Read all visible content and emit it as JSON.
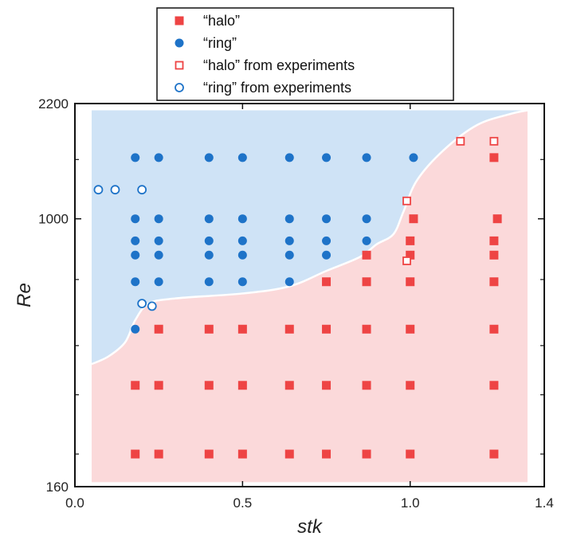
{
  "chart_data": {
    "type": "scatter",
    "title": "",
    "xlabel": "stk",
    "ylabel": "Re",
    "xlim": [
      0.0,
      1.4
    ],
    "ylim": [
      160,
      2200
    ],
    "yscale": "log",
    "x_ticks": [
      {
        "value": 0.0,
        "label": "0.0"
      },
      {
        "value": 0.5,
        "label": "0.5"
      },
      {
        "value": 1.0,
        "label": "1.0"
      },
      {
        "value": 1.4,
        "label": "1.4"
      }
    ],
    "y_ticks": [
      {
        "value": 160,
        "label": "160"
      },
      {
        "value": 1000,
        "label": "1000"
      },
      {
        "value": 2200,
        "label": "2200"
      }
    ],
    "y_minor_ticks": [
      1500,
      660,
      420,
      300,
      200
    ],
    "legend_position": "top-center",
    "regions": [
      {
        "name": "ring region",
        "color": "#cfe3f6"
      },
      {
        "name": "halo region",
        "color": "#fbd9da"
      }
    ],
    "boundary": [
      [
        0.05,
        370
      ],
      [
        0.1,
        390
      ],
      [
        0.15,
        430
      ],
      [
        0.18,
        500
      ],
      [
        0.22,
        560
      ],
      [
        0.3,
        580
      ],
      [
        0.5,
        600
      ],
      [
        0.64,
        630
      ],
      [
        0.75,
        700
      ],
      [
        0.85,
        770
      ],
      [
        0.9,
        840
      ],
      [
        0.95,
        900
      ],
      [
        0.98,
        1050
      ],
      [
        1.02,
        1300
      ],
      [
        1.1,
        1600
      ],
      [
        1.2,
        1900
      ],
      [
        1.3,
        2050
      ],
      [
        1.35,
        2100
      ]
    ],
    "series": [
      {
        "name": "“halo”",
        "marker": "square-filled",
        "color": "#ee4444",
        "points": [
          [
            0.18,
            200
          ],
          [
            0.25,
            200
          ],
          [
            0.4,
            200
          ],
          [
            0.5,
            200
          ],
          [
            0.64,
            200
          ],
          [
            0.75,
            200
          ],
          [
            0.87,
            200
          ],
          [
            1.0,
            200
          ],
          [
            1.25,
            200
          ],
          [
            0.18,
            320
          ],
          [
            0.25,
            320
          ],
          [
            0.4,
            320
          ],
          [
            0.5,
            320
          ],
          [
            0.64,
            320
          ],
          [
            0.75,
            320
          ],
          [
            0.87,
            320
          ],
          [
            1.0,
            320
          ],
          [
            1.25,
            320
          ],
          [
            0.25,
            470
          ],
          [
            0.4,
            470
          ],
          [
            0.5,
            470
          ],
          [
            0.64,
            470
          ],
          [
            0.75,
            470
          ],
          [
            0.87,
            470
          ],
          [
            1.0,
            470
          ],
          [
            1.25,
            470
          ],
          [
            0.75,
            650
          ],
          [
            0.87,
            650
          ],
          [
            1.0,
            650
          ],
          [
            1.25,
            650
          ],
          [
            0.87,
            780
          ],
          [
            1.0,
            780
          ],
          [
            1.25,
            780
          ],
          [
            1.0,
            860
          ],
          [
            1.25,
            860
          ],
          [
            1.01,
            1000
          ],
          [
            1.26,
            1000
          ],
          [
            1.25,
            1520
          ]
        ]
      },
      {
        "name": "“ring”",
        "marker": "circle-filled",
        "color": "#1e73c8",
        "points": [
          [
            0.18,
            1520
          ],
          [
            0.25,
            1520
          ],
          [
            0.4,
            1520
          ],
          [
            0.5,
            1520
          ],
          [
            0.64,
            1520
          ],
          [
            0.75,
            1520
          ],
          [
            0.87,
            1520
          ],
          [
            1.01,
            1520
          ],
          [
            0.18,
            1000
          ],
          [
            0.25,
            1000
          ],
          [
            0.4,
            1000
          ],
          [
            0.5,
            1000
          ],
          [
            0.64,
            1000
          ],
          [
            0.75,
            1000
          ],
          [
            0.87,
            1000
          ],
          [
            0.18,
            860
          ],
          [
            0.25,
            860
          ],
          [
            0.4,
            860
          ],
          [
            0.5,
            860
          ],
          [
            0.64,
            860
          ],
          [
            0.75,
            860
          ],
          [
            0.87,
            860
          ],
          [
            0.18,
            780
          ],
          [
            0.25,
            780
          ],
          [
            0.4,
            780
          ],
          [
            0.5,
            780
          ],
          [
            0.64,
            780
          ],
          [
            0.75,
            780
          ],
          [
            0.18,
            650
          ],
          [
            0.25,
            650
          ],
          [
            0.4,
            650
          ],
          [
            0.5,
            650
          ],
          [
            0.64,
            650
          ],
          [
            0.18,
            470
          ]
        ]
      },
      {
        "name": "“halo” from experiments",
        "marker": "square-open",
        "color": "#ee4444",
        "points": [
          [
            1.15,
            1700
          ],
          [
            1.25,
            1700
          ],
          [
            0.99,
            1130
          ],
          [
            0.99,
            750
          ]
        ]
      },
      {
        "name": "“ring” from experiments",
        "marker": "circle-open",
        "color": "#1e73c8",
        "points": [
          [
            0.07,
            1220
          ],
          [
            0.12,
            1220
          ],
          [
            0.2,
            1220
          ],
          [
            0.2,
            560
          ],
          [
            0.23,
            550
          ]
        ]
      }
    ]
  }
}
